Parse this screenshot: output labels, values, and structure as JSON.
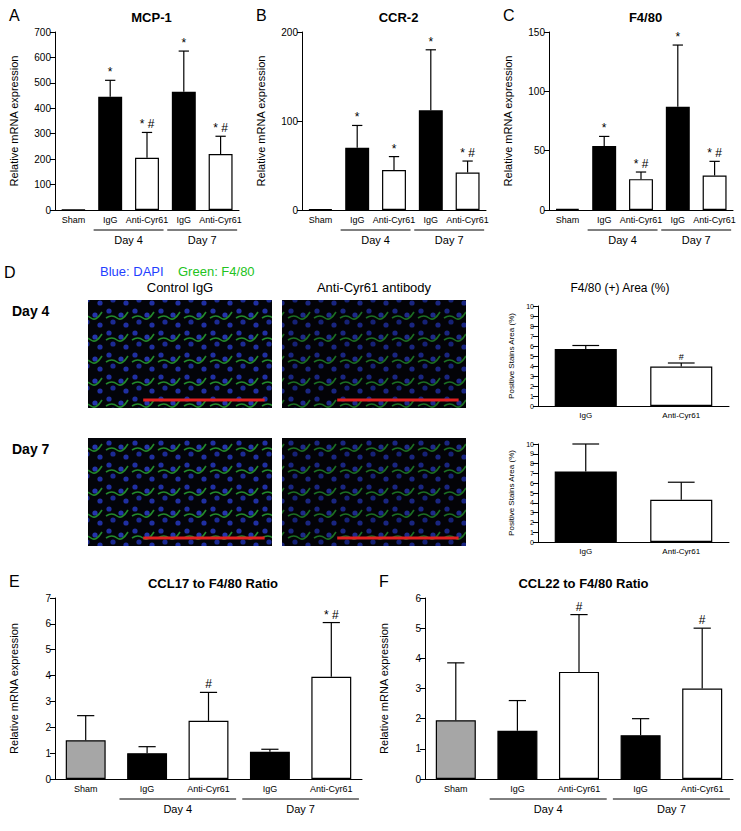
{
  "chart_data": [
    {
      "panel": "A",
      "type": "bar",
      "title": "MCP-1",
      "y_label": "Relative mRNA expression",
      "categories": [
        "Sham",
        "IgG",
        "Anti-Cyr61",
        "IgG",
        "Anti-Cyr61"
      ],
      "x_groups": [
        {
          "label": "Day 4",
          "start": 1,
          "end": 2
        },
        {
          "label": "Day 7",
          "start": 3,
          "end": 4
        }
      ],
      "values": [
        2,
        445,
        205,
        465,
        220
      ],
      "errors": [
        null,
        65,
        100,
        160,
        70
      ],
      "colors": [
        "#000000",
        "#000000",
        "#ffffff",
        "#000000",
        "#ffffff"
      ],
      "significance": [
        null,
        "*",
        "* #",
        "*",
        "* #"
      ],
      "ylim": [
        0,
        700
      ],
      "yticks": [
        0,
        100,
        200,
        300,
        400,
        500,
        600,
        700
      ],
      "grid": false
    },
    {
      "panel": "B",
      "type": "bar",
      "title": "CCR-2",
      "y_label": "Relative mRNA expression",
      "categories": [
        "Sham",
        "IgG",
        "Anti-Cyr61",
        "IgG",
        "Anti-Cyr61"
      ],
      "x_groups": [
        {
          "label": "Day 4",
          "start": 1,
          "end": 2
        },
        {
          "label": "Day 7",
          "start": 3,
          "end": 4
        }
      ],
      "values": [
        1,
        70,
        45,
        112,
        42
      ],
      "errors": [
        null,
        25,
        15,
        68,
        13
      ],
      "colors": [
        "#000000",
        "#000000",
        "#ffffff",
        "#000000",
        "#ffffff"
      ],
      "significance": [
        null,
        "*",
        "*",
        "*",
        "* #"
      ],
      "ylim": [
        0,
        200
      ],
      "yticks": [
        0,
        100,
        200
      ],
      "grid": false
    },
    {
      "panel": "C",
      "type": "bar",
      "title": "F4/80",
      "y_label": "Relative mRNA expression",
      "categories": [
        "Sham",
        "IgG",
        "Anti-Cyr61",
        "IgG",
        "Anti-Cyr61"
      ],
      "x_groups": [
        {
          "label": "Day 4",
          "start": 1,
          "end": 2
        },
        {
          "label": "Day 7",
          "start": 3,
          "end": 4
        }
      ],
      "values": [
        1,
        54,
        26,
        87,
        29
      ],
      "errors": [
        null,
        8,
        6,
        52,
        12
      ],
      "colors": [
        "#000000",
        "#000000",
        "#ffffff",
        "#000000",
        "#ffffff"
      ],
      "significance": [
        null,
        "*",
        "* #",
        "*",
        "* #"
      ],
      "ylim": [
        0,
        150
      ],
      "yticks": [
        0,
        50,
        100,
        150
      ],
      "grid": false
    },
    {
      "type": "bar",
      "y_label": "Positive Stains Area (%)",
      "categories": [
        "IgG",
        "Anti-Cyr61"
      ],
      "values": [
        5.7,
        3.95
      ],
      "errors": [
        0.35,
        0.35
      ],
      "colors": [
        "#000000",
        "#ffffff"
      ],
      "significance": [
        null,
        "#"
      ],
      "ylim": [
        0,
        10
      ],
      "yticks": [
        0,
        1,
        2,
        3,
        4,
        5,
        6,
        7,
        8,
        9,
        10
      ],
      "grid": false
    },
    {
      "type": "bar",
      "y_label": "Positive Stains Area (%)",
      "categories": [
        "IgG",
        "Anti-Cyr61"
      ],
      "values": [
        7.2,
        4.3
      ],
      "errors": [
        2.8,
        1.8
      ],
      "colors": [
        "#000000",
        "#ffffff"
      ],
      "significance": [
        null,
        null
      ],
      "ylim": [
        0,
        10
      ],
      "yticks": [
        0,
        1,
        2,
        3,
        4,
        5,
        6,
        7,
        8,
        9,
        10
      ],
      "grid": false
    },
    {
      "panel": "E",
      "type": "bar",
      "title": "CCL17 to F4/80 Ratio",
      "y_label": "Relative mRNA expression",
      "categories": [
        "Sham",
        "IgG",
        "Anti-Cyr61",
        "IgG",
        "Anti-Cyr61"
      ],
      "x_groups": [
        {
          "label": "Day 4",
          "start": 1,
          "end": 2
        },
        {
          "label": "Day 7",
          "start": 3,
          "end": 4
        }
      ],
      "values": [
        1.5,
        1.0,
        2.25,
        1.05,
        3.95
      ],
      "errors": [
        0.95,
        0.25,
        1.1,
        0.1,
        2.1
      ],
      "colors": [
        "#a6a6a6",
        "#000000",
        "#ffffff",
        "#000000",
        "#ffffff"
      ],
      "significance": [
        null,
        null,
        "#",
        null,
        "* #"
      ],
      "ylim": [
        0,
        7
      ],
      "yticks": [
        0,
        1,
        2,
        3,
        4,
        5,
        6,
        7
      ],
      "grid": false
    },
    {
      "panel": "F",
      "type": "bar",
      "title": "CCL22 to F4/80 Ratio",
      "y_label": "Relative mRNA expression",
      "categories": [
        "Sham",
        "IgG",
        "Anti-Cyr61",
        "IgG",
        "Anti-Cyr61"
      ],
      "x_groups": [
        {
          "label": "Day 4",
          "start": 1,
          "end": 2
        },
        {
          "label": "Day 7",
          "start": 3,
          "end": 4
        }
      ],
      "values": [
        1.95,
        1.6,
        3.55,
        1.45,
        3.0
      ],
      "errors": [
        1.9,
        1.0,
        1.9,
        0.55,
        2.0
      ],
      "colors": [
        "#a6a6a6",
        "#000000",
        "#ffffff",
        "#000000",
        "#ffffff"
      ],
      "significance": [
        null,
        null,
        "#",
        null,
        "#"
      ],
      "ylim": [
        0,
        6
      ],
      "yticks": [
        0,
        1,
        2,
        3,
        4,
        5,
        6
      ],
      "grid": false
    }
  ],
  "micrographs": {
    "panel": "D",
    "stain_labels": [
      {
        "text": "Blue: DAPI",
        "color": "#1f3fff"
      },
      {
        "text": "Green: F4/80",
        "color": "#22c322"
      }
    ],
    "columns": [
      "Control IgG",
      "Anti-Cyr61 antibody"
    ],
    "rows": [
      "Day 4",
      "Day 7"
    ],
    "quantification_title": "F4/80 (+) Area (%)"
  }
}
